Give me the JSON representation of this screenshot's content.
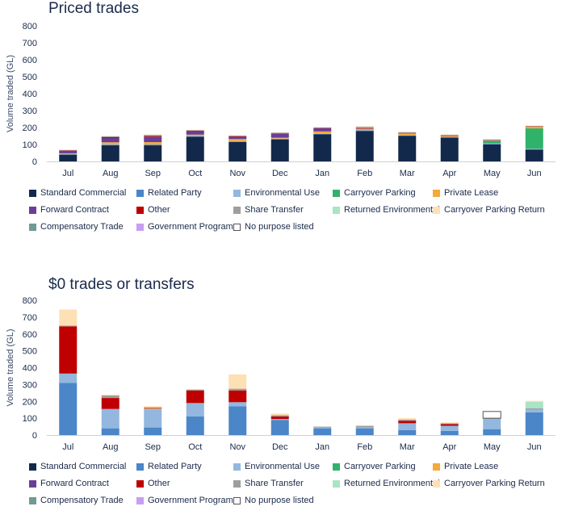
{
  "legend": [
    {
      "name": "Standard Commercial",
      "color": "#13294b"
    },
    {
      "name": "Related Party",
      "color": "#4a86c8"
    },
    {
      "name": "Environmental Use",
      "color": "#93b7de"
    },
    {
      "name": "Carryover Parking",
      "color": "#2fb36a"
    },
    {
      "name": "Private Lease",
      "color": "#f4a93a"
    },
    {
      "name": "Forward Contract",
      "color": "#6a3d9a"
    },
    {
      "name": "Other",
      "color": "#c00000"
    },
    {
      "name": "Share Transfer",
      "color": "#9e9e9e"
    },
    {
      "name": "Returned Environmental",
      "color": "#a9e4c4"
    },
    {
      "name": "Carryover Parking Return",
      "color": "#fde0b4"
    },
    {
      "name": "Compensatory Trade",
      "color": "#6f9a96"
    },
    {
      "name": "Government Program",
      "color": "#c79ef0"
    },
    {
      "name": "No purpose listed",
      "color": "#ffffff"
    }
  ],
  "chart_data": [
    {
      "type": "bar",
      "stacked": true,
      "title": "Priced trades",
      "ylabel": "Volume traded (GL)",
      "xlabel": "",
      "ylim": [
        0,
        800
      ],
      "yticks": [
        0,
        100,
        200,
        300,
        400,
        500,
        600,
        700,
        800
      ],
      "grid": false,
      "legend_position": "bottom",
      "categories": [
        "Jul",
        "Aug",
        "Sep",
        "Oct",
        "Nov",
        "Dec",
        "Jan",
        "Feb",
        "Mar",
        "Apr",
        "May",
        "Jun"
      ],
      "series": [
        {
          "name": "Standard Commercial",
          "color": "#13294b",
          "values": [
            40,
            95,
            95,
            145,
            115,
            130,
            160,
            180,
            150,
            140,
            100,
            70
          ]
        },
        {
          "name": "Related Party",
          "color": "#4a86c8",
          "values": [
            2,
            3,
            3,
            3,
            3,
            3,
            3,
            3,
            3,
            3,
            3,
            3
          ]
        },
        {
          "name": "Environmental Use",
          "color": "#93b7de",
          "values": [
            1,
            3,
            2,
            2,
            2,
            2,
            2,
            2,
            2,
            2,
            3,
            2
          ]
        },
        {
          "name": "Carryover Parking",
          "color": "#2fb36a",
          "values": [
            0,
            0,
            0,
            0,
            0,
            0,
            0,
            0,
            0,
            0,
            15,
            120
          ]
        },
        {
          "name": "Private Lease",
          "color": "#f4a93a",
          "values": [
            5,
            12,
            14,
            8,
            12,
            5,
            12,
            7,
            10,
            5,
            0,
            10
          ]
        },
        {
          "name": "Forward Contract",
          "color": "#6a3d9a",
          "values": [
            15,
            25,
            32,
            20,
            13,
            22,
            18,
            0,
            0,
            0,
            0,
            0
          ]
        },
        {
          "name": "Other",
          "color": "#c00000",
          "values": [
            2,
            5,
            4,
            3,
            3,
            3,
            2,
            3,
            3,
            2,
            1,
            2
          ]
        },
        {
          "name": "Share Transfer",
          "color": "#9e9e9e",
          "values": [
            3,
            6,
            6,
            4,
            5,
            5,
            4,
            10,
            5,
            5,
            2,
            2
          ]
        },
        {
          "name": "Returned Environmental",
          "color": "#a9e4c4",
          "values": [
            0,
            0,
            0,
            0,
            0,
            0,
            0,
            0,
            0,
            0,
            0,
            0
          ]
        },
        {
          "name": "Carryover Parking Return",
          "color": "#fde0b4",
          "values": [
            2,
            2,
            3,
            2,
            2,
            2,
            2,
            2,
            2,
            2,
            1,
            2
          ]
        },
        {
          "name": "Compensatory Trade",
          "color": "#6f9a96",
          "values": [
            0,
            0,
            0,
            0,
            0,
            0,
            0,
            0,
            0,
            0,
            5,
            0
          ]
        },
        {
          "name": "Government Program",
          "color": "#c79ef0",
          "values": [
            0,
            0,
            0,
            0,
            0,
            0,
            0,
            0,
            0,
            0,
            0,
            0
          ]
        },
        {
          "name": "No purpose listed",
          "color": "#ffffff",
          "values": [
            0,
            0,
            0,
            0,
            0,
            0,
            0,
            0,
            0,
            0,
            0,
            0
          ]
        }
      ]
    },
    {
      "type": "bar",
      "stacked": true,
      "title": "$0 trades or transfers",
      "ylabel": "Volume traded (GL)",
      "xlabel": "",
      "ylim": [
        0,
        800
      ],
      "yticks": [
        0,
        100,
        200,
        300,
        400,
        500,
        600,
        700,
        800
      ],
      "grid": false,
      "legend_position": "bottom",
      "categories": [
        "Jul",
        "Aug",
        "Sep",
        "Oct",
        "Nov",
        "Dec",
        "Jan",
        "Feb",
        "Mar",
        "Apr",
        "May",
        "Jun"
      ],
      "series": [
        {
          "name": "Standard Commercial",
          "color": "#13294b",
          "values": [
            0,
            0,
            0,
            0,
            0,
            0,
            0,
            0,
            0,
            0,
            0,
            0
          ]
        },
        {
          "name": "Related Party",
          "color": "#4a86c8",
          "values": [
            310,
            40,
            45,
            110,
            170,
            90,
            40,
            40,
            30,
            25,
            35,
            135
          ]
        },
        {
          "name": "Environmental Use",
          "color": "#93b7de",
          "values": [
            55,
            115,
            110,
            80,
            25,
            5,
            5,
            5,
            40,
            30,
            60,
            15
          ]
        },
        {
          "name": "Carryover Parking",
          "color": "#2fb36a",
          "values": [
            0,
            0,
            0,
            0,
            0,
            0,
            0,
            0,
            0,
            0,
            0,
            0
          ]
        },
        {
          "name": "Private Lease",
          "color": "#f4a93a",
          "values": [
            0,
            0,
            3,
            0,
            0,
            0,
            0,
            0,
            0,
            0,
            0,
            0
          ]
        },
        {
          "name": "Forward Contract",
          "color": "#6a3d9a",
          "values": [
            0,
            0,
            0,
            0,
            0,
            0,
            0,
            0,
            0,
            0,
            0,
            0
          ]
        },
        {
          "name": "Other",
          "color": "#c00000",
          "values": [
            280,
            65,
            3,
            75,
            70,
            15,
            0,
            0,
            15,
            10,
            0,
            0
          ]
        },
        {
          "name": "Share Transfer",
          "color": "#9e9e9e",
          "values": [
            5,
            15,
            3,
            5,
            10,
            8,
            5,
            10,
            6,
            5,
            5,
            8
          ]
        },
        {
          "name": "Returned Environmental",
          "color": "#a9e4c4",
          "values": [
            0,
            0,
            0,
            0,
            0,
            0,
            0,
            0,
            0,
            0,
            0,
            40
          ]
        },
        {
          "name": "Carryover Parking Return",
          "color": "#fde0b4",
          "values": [
            95,
            5,
            8,
            0,
            85,
            10,
            0,
            0,
            10,
            5,
            0,
            5
          ]
        },
        {
          "name": "Compensatory Trade",
          "color": "#6f9a96",
          "values": [
            0,
            0,
            0,
            0,
            0,
            0,
            0,
            0,
            0,
            0,
            0,
            0
          ]
        },
        {
          "name": "Government Program",
          "color": "#c79ef0",
          "values": [
            0,
            0,
            0,
            0,
            0,
            0,
            0,
            0,
            0,
            0,
            0,
            0
          ]
        },
        {
          "name": "No purpose listed",
          "color": "#ffffff",
          "values": [
            0,
            0,
            0,
            0,
            0,
            0,
            0,
            0,
            0,
            0,
            40,
            0
          ]
        }
      ]
    }
  ]
}
